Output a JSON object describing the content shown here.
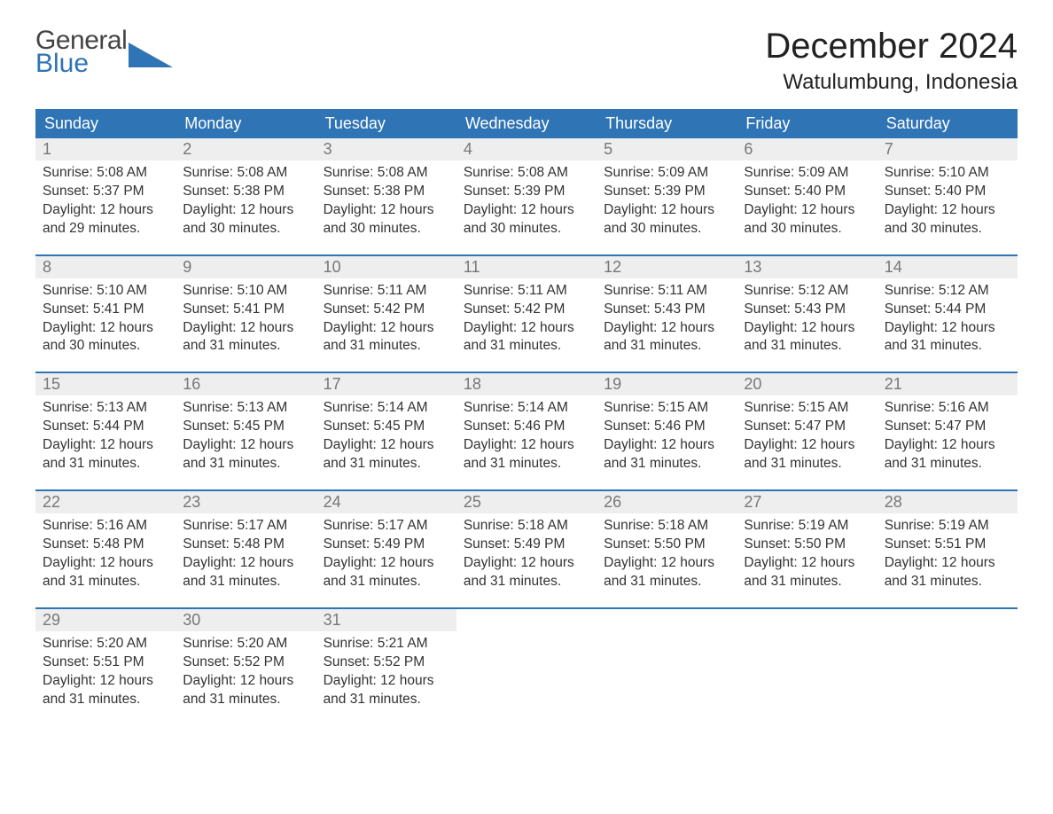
{
  "logo": {
    "line1": "General",
    "line2": "Blue",
    "triangle_color": "#2f74b5"
  },
  "title": "December 2024",
  "location": "Watulumbung, Indonesia",
  "colors": {
    "header_bg": "#2f74b5",
    "header_text": "#ffffff",
    "daynum_bg": "#eeeeee",
    "daynum_text": "#777777",
    "body_text": "#333333",
    "sep_line": "#2f74b5",
    "page_bg": "#ffffff"
  },
  "typography": {
    "title_fontsize": 40,
    "location_fontsize": 24,
    "header_fontsize": 18,
    "cell_fontsize": 15.5
  },
  "day_headers": [
    "Sunday",
    "Monday",
    "Tuesday",
    "Wednesday",
    "Thursday",
    "Friday",
    "Saturday"
  ],
  "weeks": [
    [
      {
        "num": "1",
        "sunrise": "Sunrise: 5:08 AM",
        "sunset": "Sunset: 5:37 PM",
        "day1": "Daylight: 12 hours",
        "day2": "and 29 minutes."
      },
      {
        "num": "2",
        "sunrise": "Sunrise: 5:08 AM",
        "sunset": "Sunset: 5:38 PM",
        "day1": "Daylight: 12 hours",
        "day2": "and 30 minutes."
      },
      {
        "num": "3",
        "sunrise": "Sunrise: 5:08 AM",
        "sunset": "Sunset: 5:38 PM",
        "day1": "Daylight: 12 hours",
        "day2": "and 30 minutes."
      },
      {
        "num": "4",
        "sunrise": "Sunrise: 5:08 AM",
        "sunset": "Sunset: 5:39 PM",
        "day1": "Daylight: 12 hours",
        "day2": "and 30 minutes."
      },
      {
        "num": "5",
        "sunrise": "Sunrise: 5:09 AM",
        "sunset": "Sunset: 5:39 PM",
        "day1": "Daylight: 12 hours",
        "day2": "and 30 minutes."
      },
      {
        "num": "6",
        "sunrise": "Sunrise: 5:09 AM",
        "sunset": "Sunset: 5:40 PM",
        "day1": "Daylight: 12 hours",
        "day2": "and 30 minutes."
      },
      {
        "num": "7",
        "sunrise": "Sunrise: 5:10 AM",
        "sunset": "Sunset: 5:40 PM",
        "day1": "Daylight: 12 hours",
        "day2": "and 30 minutes."
      }
    ],
    [
      {
        "num": "8",
        "sunrise": "Sunrise: 5:10 AM",
        "sunset": "Sunset: 5:41 PM",
        "day1": "Daylight: 12 hours",
        "day2": "and 30 minutes."
      },
      {
        "num": "9",
        "sunrise": "Sunrise: 5:10 AM",
        "sunset": "Sunset: 5:41 PM",
        "day1": "Daylight: 12 hours",
        "day2": "and 31 minutes."
      },
      {
        "num": "10",
        "sunrise": "Sunrise: 5:11 AM",
        "sunset": "Sunset: 5:42 PM",
        "day1": "Daylight: 12 hours",
        "day2": "and 31 minutes."
      },
      {
        "num": "11",
        "sunrise": "Sunrise: 5:11 AM",
        "sunset": "Sunset: 5:42 PM",
        "day1": "Daylight: 12 hours",
        "day2": "and 31 minutes."
      },
      {
        "num": "12",
        "sunrise": "Sunrise: 5:11 AM",
        "sunset": "Sunset: 5:43 PM",
        "day1": "Daylight: 12 hours",
        "day2": "and 31 minutes."
      },
      {
        "num": "13",
        "sunrise": "Sunrise: 5:12 AM",
        "sunset": "Sunset: 5:43 PM",
        "day1": "Daylight: 12 hours",
        "day2": "and 31 minutes."
      },
      {
        "num": "14",
        "sunrise": "Sunrise: 5:12 AM",
        "sunset": "Sunset: 5:44 PM",
        "day1": "Daylight: 12 hours",
        "day2": "and 31 minutes."
      }
    ],
    [
      {
        "num": "15",
        "sunrise": "Sunrise: 5:13 AM",
        "sunset": "Sunset: 5:44 PM",
        "day1": "Daylight: 12 hours",
        "day2": "and 31 minutes."
      },
      {
        "num": "16",
        "sunrise": "Sunrise: 5:13 AM",
        "sunset": "Sunset: 5:45 PM",
        "day1": "Daylight: 12 hours",
        "day2": "and 31 minutes."
      },
      {
        "num": "17",
        "sunrise": "Sunrise: 5:14 AM",
        "sunset": "Sunset: 5:45 PM",
        "day1": "Daylight: 12 hours",
        "day2": "and 31 minutes."
      },
      {
        "num": "18",
        "sunrise": "Sunrise: 5:14 AM",
        "sunset": "Sunset: 5:46 PM",
        "day1": "Daylight: 12 hours",
        "day2": "and 31 minutes."
      },
      {
        "num": "19",
        "sunrise": "Sunrise: 5:15 AM",
        "sunset": "Sunset: 5:46 PM",
        "day1": "Daylight: 12 hours",
        "day2": "and 31 minutes."
      },
      {
        "num": "20",
        "sunrise": "Sunrise: 5:15 AM",
        "sunset": "Sunset: 5:47 PM",
        "day1": "Daylight: 12 hours",
        "day2": "and 31 minutes."
      },
      {
        "num": "21",
        "sunrise": "Sunrise: 5:16 AM",
        "sunset": "Sunset: 5:47 PM",
        "day1": "Daylight: 12 hours",
        "day2": "and 31 minutes."
      }
    ],
    [
      {
        "num": "22",
        "sunrise": "Sunrise: 5:16 AM",
        "sunset": "Sunset: 5:48 PM",
        "day1": "Daylight: 12 hours",
        "day2": "and 31 minutes."
      },
      {
        "num": "23",
        "sunrise": "Sunrise: 5:17 AM",
        "sunset": "Sunset: 5:48 PM",
        "day1": "Daylight: 12 hours",
        "day2": "and 31 minutes."
      },
      {
        "num": "24",
        "sunrise": "Sunrise: 5:17 AM",
        "sunset": "Sunset: 5:49 PM",
        "day1": "Daylight: 12 hours",
        "day2": "and 31 minutes."
      },
      {
        "num": "25",
        "sunrise": "Sunrise: 5:18 AM",
        "sunset": "Sunset: 5:49 PM",
        "day1": "Daylight: 12 hours",
        "day2": "and 31 minutes."
      },
      {
        "num": "26",
        "sunrise": "Sunrise: 5:18 AM",
        "sunset": "Sunset: 5:50 PM",
        "day1": "Daylight: 12 hours",
        "day2": "and 31 minutes."
      },
      {
        "num": "27",
        "sunrise": "Sunrise: 5:19 AM",
        "sunset": "Sunset: 5:50 PM",
        "day1": "Daylight: 12 hours",
        "day2": "and 31 minutes."
      },
      {
        "num": "28",
        "sunrise": "Sunrise: 5:19 AM",
        "sunset": "Sunset: 5:51 PM",
        "day1": "Daylight: 12 hours",
        "day2": "and 31 minutes."
      }
    ],
    [
      {
        "num": "29",
        "sunrise": "Sunrise: 5:20 AM",
        "sunset": "Sunset: 5:51 PM",
        "day1": "Daylight: 12 hours",
        "day2": "and 31 minutes."
      },
      {
        "num": "30",
        "sunrise": "Sunrise: 5:20 AM",
        "sunset": "Sunset: 5:52 PM",
        "day1": "Daylight: 12 hours",
        "day2": "and 31 minutes."
      },
      {
        "num": "31",
        "sunrise": "Sunrise: 5:21 AM",
        "sunset": "Sunset: 5:52 PM",
        "day1": "Daylight: 12 hours",
        "day2": "and 31 minutes."
      },
      null,
      null,
      null,
      null
    ]
  ]
}
